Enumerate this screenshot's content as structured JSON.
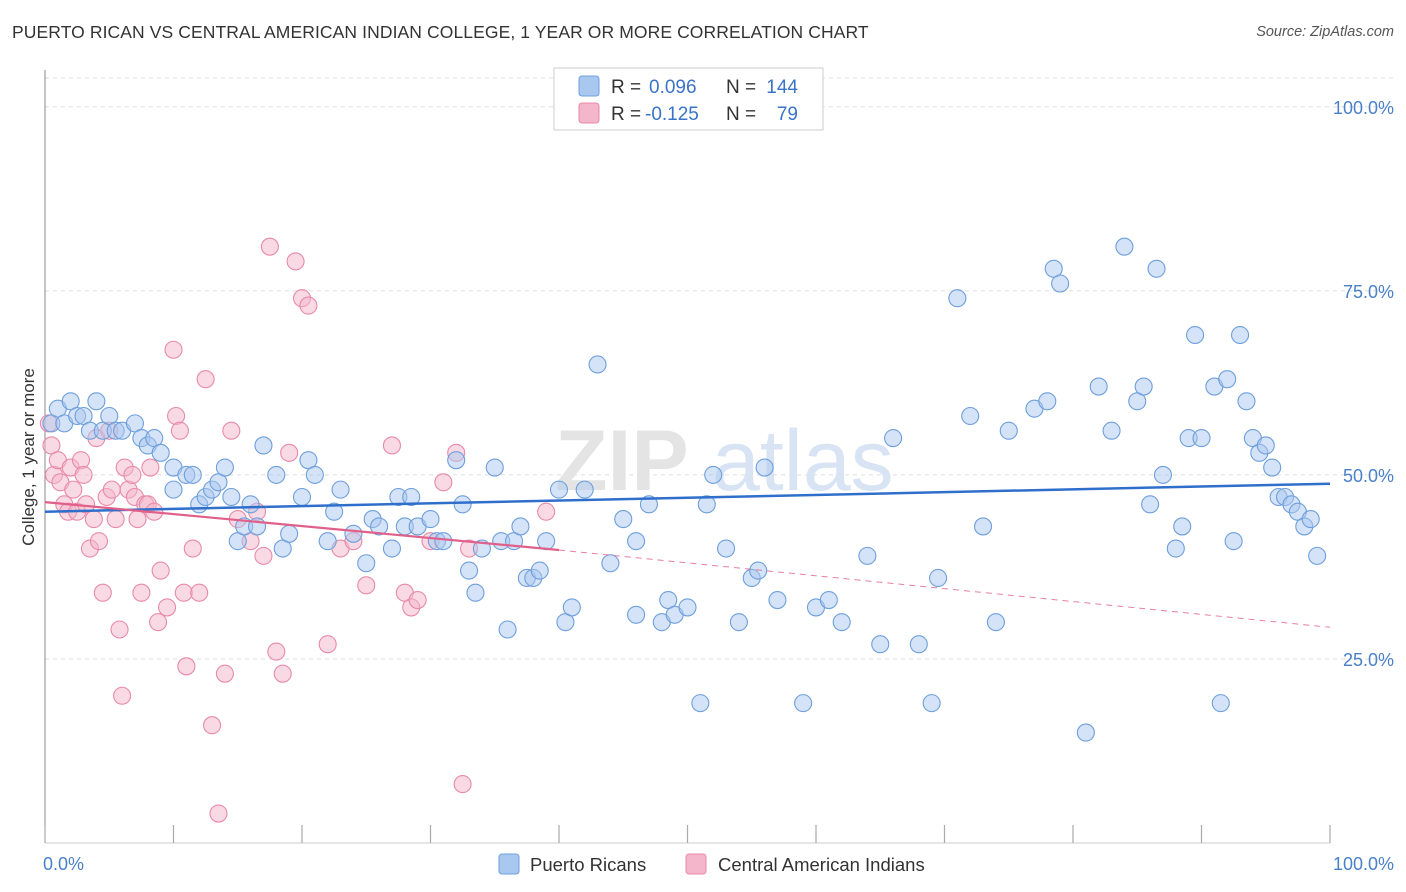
{
  "title": "PUERTO RICAN VS CENTRAL AMERICAN INDIAN COLLEGE, 1 YEAR OR MORE CORRELATION CHART",
  "source": "Source: ZipAtlas.com",
  "watermark": {
    "zip": "ZIP",
    "atlas": "atlas"
  },
  "colors": {
    "blue_fill": "#a9c8ef",
    "blue_stroke": "#6e9fdc",
    "blue_line": "#2f6fcb",
    "pink_fill": "#f4b6ca",
    "pink_stroke": "#e88aa8",
    "pink_line": "#e0608a",
    "grid": "#dddddd",
    "axis_text": "#4a80c8"
  },
  "legend": {
    "rows": [
      {
        "r_label": "R =",
        "r_value": "0.096",
        "n_label": "N =",
        "n_value": "144"
      },
      {
        "r_label": "R =",
        "r_value": "-0.125",
        "n_label": "N =",
        "n_value": "79"
      }
    ]
  },
  "bottom_legend": [
    "Puerto Ricans",
    "Central American Indians"
  ],
  "chart_data": {
    "type": "scatter",
    "title": "PUERTO RICAN VS CENTRAL AMERICAN INDIAN COLLEGE, 1 YEAR OR MORE CORRELATION CHART",
    "xlabel": "",
    "ylabel": "College, 1 year or more",
    "xlim": [
      0,
      100
    ],
    "ylim": [
      0,
      105
    ],
    "x_tick_labels": [
      "0.0%",
      "100.0%"
    ],
    "y_ticks": [
      25,
      50,
      75,
      100
    ],
    "y_tick_labels": [
      "25.0%",
      "50.0%",
      "75.0%",
      "100.0%"
    ],
    "grid": true,
    "legend_position": "top-center",
    "series": [
      {
        "name": "Puerto Ricans",
        "R": 0.096,
        "N": 144,
        "trend": {
          "x": [
            0,
            100
          ],
          "y": [
            45.0,
            48.8
          ]
        },
        "points": [
          [
            0.5,
            57
          ],
          [
            1,
            59
          ],
          [
            1.5,
            57
          ],
          [
            2,
            60
          ],
          [
            2.5,
            58
          ],
          [
            3,
            58
          ],
          [
            3.5,
            56
          ],
          [
            4,
            60
          ],
          [
            4.5,
            56
          ],
          [
            5,
            58
          ],
          [
            5.5,
            56
          ],
          [
            6,
            56
          ],
          [
            7,
            57
          ],
          [
            7.5,
            55
          ],
          [
            8,
            54
          ],
          [
            8.5,
            55
          ],
          [
            9,
            53
          ],
          [
            10,
            51
          ],
          [
            10,
            48
          ],
          [
            11,
            50
          ],
          [
            11.5,
            50
          ],
          [
            12,
            46
          ],
          [
            12.5,
            47
          ],
          [
            13,
            48
          ],
          [
            13.5,
            49
          ],
          [
            14,
            51
          ],
          [
            14.5,
            47
          ],
          [
            15,
            41
          ],
          [
            15.5,
            43
          ],
          [
            16,
            46
          ],
          [
            16.5,
            43
          ],
          [
            17,
            54
          ],
          [
            18,
            50
          ],
          [
            18.5,
            40
          ],
          [
            19,
            42
          ],
          [
            20,
            47
          ],
          [
            20.5,
            52
          ],
          [
            21,
            50
          ],
          [
            22,
            41
          ],
          [
            22.5,
            45
          ],
          [
            23,
            48
          ],
          [
            24,
            42
          ],
          [
            25,
            38
          ],
          [
            25.5,
            44
          ],
          [
            26,
            43
          ],
          [
            27,
            40
          ],
          [
            27.5,
            47
          ],
          [
            28,
            43
          ],
          [
            28.5,
            47
          ],
          [
            29,
            43
          ],
          [
            30,
            44
          ],
          [
            30.5,
            41
          ],
          [
            31,
            41
          ],
          [
            32,
            52
          ],
          [
            32.5,
            46
          ],
          [
            33,
            37
          ],
          [
            33.5,
            34
          ],
          [
            34,
            40
          ],
          [
            35,
            51
          ],
          [
            35.5,
            41
          ],
          [
            36,
            29
          ],
          [
            36.5,
            41
          ],
          [
            37,
            43
          ],
          [
            37.5,
            36
          ],
          [
            38,
            36
          ],
          [
            38.5,
            37
          ],
          [
            39,
            41
          ],
          [
            40,
            48
          ],
          [
            40.5,
            30
          ],
          [
            41,
            32
          ],
          [
            42,
            48
          ],
          [
            43,
            65
          ],
          [
            44,
            38
          ],
          [
            45,
            44
          ],
          [
            46,
            41
          ],
          [
            46,
            31
          ],
          [
            47,
            46
          ],
          [
            48,
            30
          ],
          [
            48.5,
            33
          ],
          [
            49,
            31
          ],
          [
            50,
            32
          ],
          [
            51,
            19
          ],
          [
            51.5,
            46
          ],
          [
            52,
            50
          ],
          [
            53,
            40
          ],
          [
            54,
            30
          ],
          [
            55,
            36
          ],
          [
            55.5,
            37
          ],
          [
            56,
            51
          ],
          [
            57,
            33
          ],
          [
            59,
            19
          ],
          [
            60,
            32
          ],
          [
            61,
            33
          ],
          [
            62,
            30
          ],
          [
            64,
            39
          ],
          [
            65,
            27
          ],
          [
            66,
            55
          ],
          [
            68,
            27
          ],
          [
            69,
            19
          ],
          [
            69.5,
            36
          ],
          [
            71,
            74
          ],
          [
            72,
            58
          ],
          [
            73,
            43
          ],
          [
            74,
            30
          ],
          [
            75,
            56
          ],
          [
            77,
            59
          ],
          [
            78,
            60
          ],
          [
            78.5,
            78
          ],
          [
            79,
            76
          ],
          [
            81,
            15
          ],
          [
            82,
            62
          ],
          [
            83,
            56
          ],
          [
            84,
            81
          ],
          [
            85,
            60
          ],
          [
            85.5,
            62
          ],
          [
            86,
            46
          ],
          [
            86.5,
            78
          ],
          [
            87,
            50
          ],
          [
            88,
            40
          ],
          [
            88.5,
            43
          ],
          [
            89,
            55
          ],
          [
            89.5,
            69
          ],
          [
            90,
            55
          ],
          [
            91,
            62
          ],
          [
            91.5,
            19
          ],
          [
            92,
            63
          ],
          [
            92.5,
            41
          ],
          [
            93,
            69
          ],
          [
            93.5,
            60
          ],
          [
            94,
            55
          ],
          [
            94.5,
            53
          ],
          [
            95,
            54
          ],
          [
            95.5,
            51
          ],
          [
            96,
            47
          ],
          [
            96.5,
            47
          ],
          [
            97,
            46
          ],
          [
            97.5,
            45
          ],
          [
            98,
            43
          ],
          [
            98.5,
            44
          ],
          [
            99,
            39
          ]
        ]
      },
      {
        "name": "Central American Indians",
        "R": -0.125,
        "N": 79,
        "trend": {
          "x": [
            0,
            40
          ],
          "y": [
            46.3,
            39.8
          ]
        },
        "trend_dashed": {
          "x": [
            40,
            100
          ],
          "y": [
            39.8,
            29.3
          ]
        },
        "points": [
          [
            0.3,
            57
          ],
          [
            0.5,
            54
          ],
          [
            0.7,
            50
          ],
          [
            1,
            52
          ],
          [
            1.2,
            49
          ],
          [
            1.5,
            46
          ],
          [
            1.8,
            45
          ],
          [
            2,
            51
          ],
          [
            2.2,
            48
          ],
          [
            2.5,
            45
          ],
          [
            2.8,
            52
          ],
          [
            3,
            50
          ],
          [
            3.2,
            46
          ],
          [
            3.5,
            40
          ],
          [
            3.8,
            44
          ],
          [
            4,
            55
          ],
          [
            4.2,
            41
          ],
          [
            4.5,
            34
          ],
          [
            4.8,
            47
          ],
          [
            5,
            56
          ],
          [
            5.2,
            48
          ],
          [
            5.5,
            44
          ],
          [
            5.8,
            29
          ],
          [
            6,
            20
          ],
          [
            6.2,
            51
          ],
          [
            6.5,
            48
          ],
          [
            6.8,
            50
          ],
          [
            7,
            47
          ],
          [
            7.2,
            44
          ],
          [
            7.5,
            34
          ],
          [
            7.8,
            46
          ],
          [
            8,
            46
          ],
          [
            8.2,
            51
          ],
          [
            8.5,
            45
          ],
          [
            8.8,
            30
          ],
          [
            9,
            37
          ],
          [
            9.5,
            32
          ],
          [
            10,
            67
          ],
          [
            10.2,
            58
          ],
          [
            10.5,
            56
          ],
          [
            10.8,
            34
          ],
          [
            11,
            24
          ],
          [
            11.5,
            40
          ],
          [
            12,
            34
          ],
          [
            12.5,
            63
          ],
          [
            13,
            16
          ],
          [
            13.5,
            4
          ],
          [
            14,
            23
          ],
          [
            14.5,
            56
          ],
          [
            15,
            44
          ],
          [
            16,
            41
          ],
          [
            16.5,
            45
          ],
          [
            17,
            39
          ],
          [
            17.5,
            81
          ],
          [
            18,
            26
          ],
          [
            18.5,
            23
          ],
          [
            19,
            53
          ],
          [
            19.5,
            79
          ],
          [
            20,
            74
          ],
          [
            20.5,
            73
          ],
          [
            22,
            27
          ],
          [
            23,
            40
          ],
          [
            24,
            41
          ],
          [
            25,
            35
          ],
          [
            27,
            54
          ],
          [
            28,
            34
          ],
          [
            28.5,
            32
          ],
          [
            29,
            33
          ],
          [
            30,
            41
          ],
          [
            31,
            49
          ],
          [
            32,
            53
          ],
          [
            32.5,
            8
          ],
          [
            33,
            40
          ],
          [
            39,
            45
          ]
        ]
      }
    ]
  }
}
